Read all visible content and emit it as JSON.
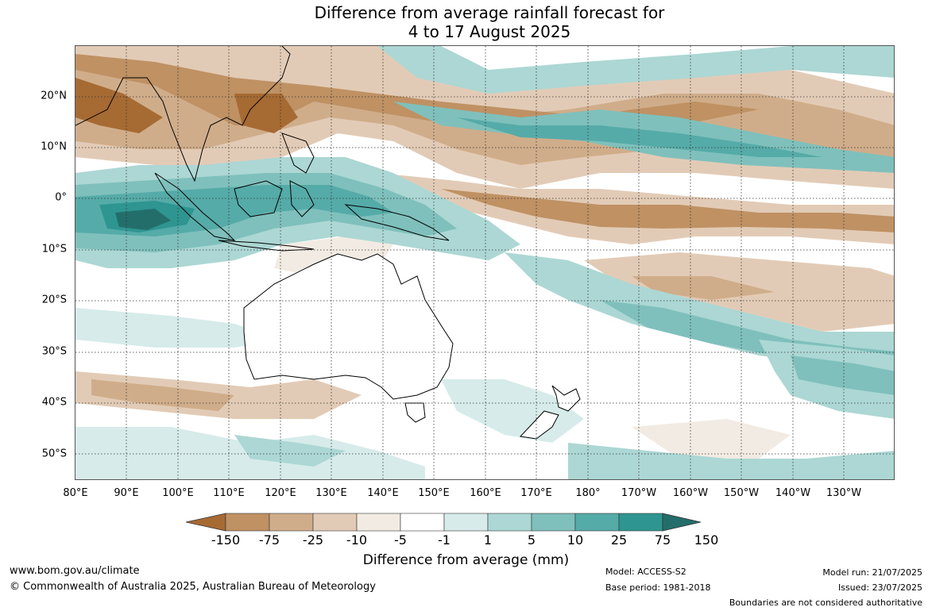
{
  "title": {
    "line1": "Difference from average rainfall forecast for",
    "line2": "4 to 17 August 2025"
  },
  "map": {
    "lat_labels": [
      "20°N",
      "10°N",
      "0°",
      "10°S",
      "20°S",
      "30°S",
      "40°S",
      "50°S"
    ],
    "lon_labels": [
      "80°E",
      "90°E",
      "100°E",
      "110°E",
      "120°E",
      "130°E",
      "140°E",
      "150°E",
      "160°E",
      "170°E",
      "180°",
      "170°W",
      "160°W",
      "150°W",
      "140°W",
      "130°W"
    ]
  },
  "legend": {
    "ticks": [
      "-150",
      "-75",
      "-25",
      "-10",
      "-5",
      "-1",
      "1",
      "5",
      "10",
      "25",
      "75",
      "150"
    ],
    "colors": [
      "#a66a33",
      "#bf9163",
      "#d0ad8a",
      "#e2cbb6",
      "#f2ebe3",
      "#ffffff",
      "#d6ebea",
      "#acd7d4",
      "#7fc0bc",
      "#55aba8",
      "#2e9591",
      "#236e6b"
    ],
    "label": "Difference from average (mm)"
  },
  "footer": {
    "url": "www.bom.gov.au/climate",
    "copyright": "© Commonwealth of Australia 2025, Australian Bureau of Meteorology",
    "model": "Model: ACCESS-S2",
    "base_period": "Base period: 1981-2018",
    "model_run": "Model run: 21/07/2025",
    "issued": "Issued: 23/07/2025",
    "disclaimer": "Boundaries are not considered authoritative"
  }
}
